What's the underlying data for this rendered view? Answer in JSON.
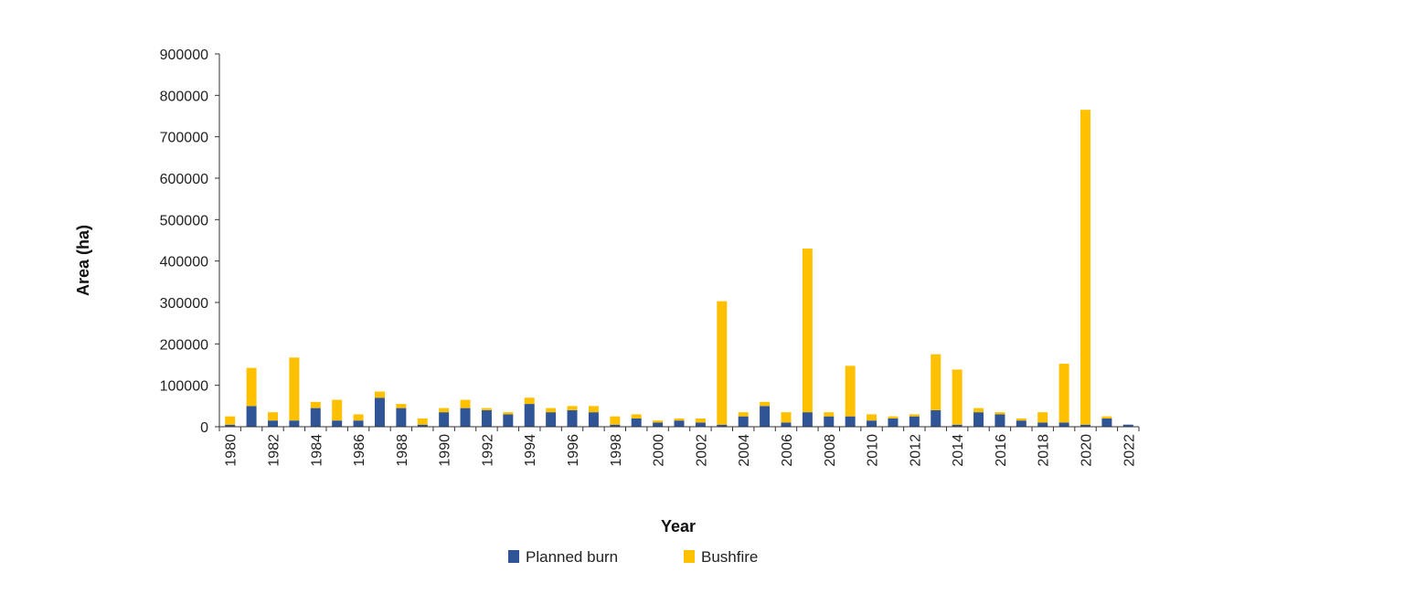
{
  "chart_data": {
    "type": "bar",
    "stacked": true,
    "xlabel": "Year",
    "ylabel": "Area (ha)",
    "ylim": [
      0,
      900000
    ],
    "yticks": [
      0,
      100000,
      200000,
      300000,
      400000,
      500000,
      600000,
      700000,
      800000,
      900000
    ],
    "categories": [
      1980,
      1981,
      1982,
      1983,
      1984,
      1985,
      1986,
      1987,
      1988,
      1989,
      1990,
      1991,
      1992,
      1993,
      1994,
      1995,
      1996,
      1997,
      1998,
      1999,
      2000,
      2001,
      2002,
      2003,
      2004,
      2005,
      2006,
      2007,
      2008,
      2009,
      2010,
      2011,
      2012,
      2013,
      2014,
      2015,
      2016,
      2017,
      2018,
      2019,
      2020,
      2021,
      2022
    ],
    "xtick_labels": [
      "1980",
      "1982",
      "1984",
      "1986",
      "1988",
      "1990",
      "1992",
      "1994",
      "1996",
      "1998",
      "2000",
      "2002",
      "2004",
      "2006",
      "2008",
      "2010",
      "2012",
      "2014",
      "2016",
      "2018",
      "2020",
      "2022"
    ],
    "legend_position": "bottom",
    "series": [
      {
        "name": "Planned burn",
        "color": "#2f5597",
        "values": [
          5000,
          50000,
          15000,
          15000,
          45000,
          15000,
          15000,
          70000,
          45000,
          5000,
          35000,
          45000,
          40000,
          30000,
          55000,
          35000,
          40000,
          35000,
          5000,
          20000,
          10000,
          15000,
          10000,
          5000,
          25000,
          50000,
          10000,
          35000,
          25000,
          25000,
          15000,
          20000,
          25000,
          40000,
          5000,
          35000,
          30000,
          15000,
          10000,
          10000,
          5000,
          20000,
          5000
        ]
      },
      {
        "name": "Bushfire",
        "color": "#ffc000",
        "values": [
          20000,
          92000,
          20000,
          152000,
          15000,
          50000,
          15000,
          15000,
          10000,
          15000,
          10000,
          20000,
          5000,
          5000,
          15000,
          10000,
          10000,
          15000,
          20000,
          10000,
          5000,
          5000,
          10000,
          298000,
          10000,
          10000,
          25000,
          395000,
          10000,
          122000,
          15000,
          5000,
          5000,
          135000,
          133000,
          10000,
          5000,
          5000,
          25000,
          142000,
          760000,
          5000,
          0
        ]
      }
    ]
  }
}
